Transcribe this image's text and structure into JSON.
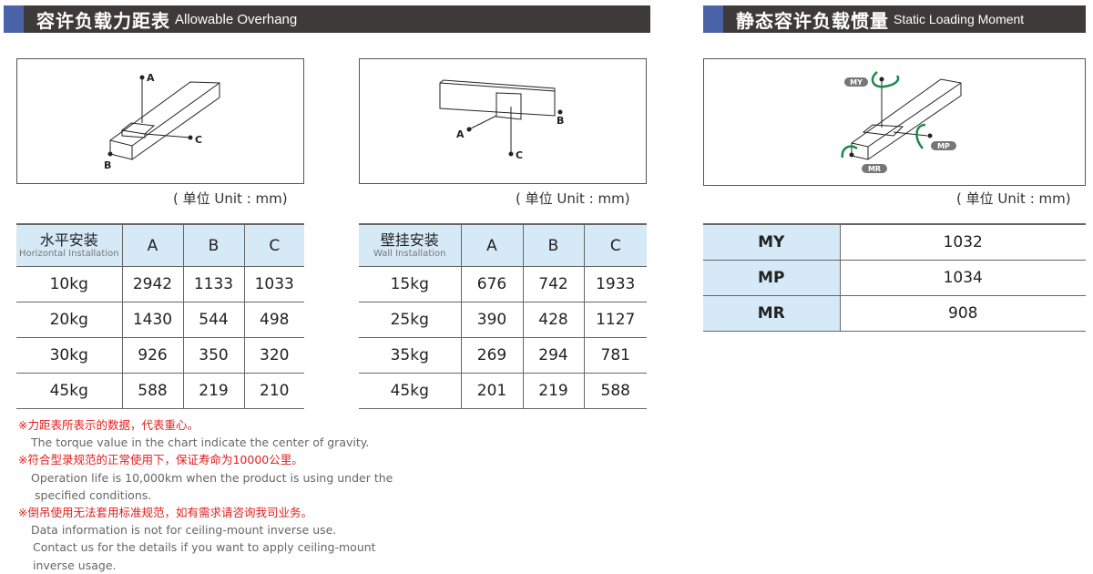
{
  "overhang": {
    "title_zh": "容许负载力距表",
    "title_en": "Allowable Overhang",
    "unit": "( 单位 Unit : mm)",
    "horizontal": {
      "header_zh": "水平安装",
      "header_en": "Horizontal Installation",
      "columns": [
        "A",
        "B",
        "C"
      ],
      "rows": [
        {
          "load": "10kg",
          "values": [
            "2942",
            "1133",
            "1033"
          ]
        },
        {
          "load": "20kg",
          "values": [
            "1430",
            "544",
            "498"
          ]
        },
        {
          "load": "30kg",
          "values": [
            "926",
            "350",
            "320"
          ]
        },
        {
          "load": "45kg",
          "values": [
            "588",
            "219",
            "210"
          ]
        }
      ]
    },
    "wall": {
      "header_zh": "壁挂安装",
      "header_en": "Wall Installation",
      "columns": [
        "A",
        "B",
        "C"
      ],
      "rows": [
        {
          "load": "15kg",
          "values": [
            "676",
            "742",
            "1933"
          ]
        },
        {
          "load": "25kg",
          "values": [
            "390",
            "428",
            "1127"
          ]
        },
        {
          "load": "35kg",
          "values": [
            "269",
            "294",
            "781"
          ]
        },
        {
          "load": "45kg",
          "values": [
            "201",
            "219",
            "588"
          ]
        }
      ]
    },
    "diagram_labels": [
      "A",
      "B",
      "C"
    ]
  },
  "moment": {
    "title_zh": "静态容许负载惯量",
    "title_en": "Static Loading Moment",
    "unit": "( 单位 Unit : mm)",
    "diagram_labels": [
      "MY",
      "MP",
      "MR"
    ],
    "arrow_color": "#1a8a4a",
    "rows": [
      {
        "label": "MY",
        "value": "1032"
      },
      {
        "label": "MP",
        "value": "1034"
      },
      {
        "label": "MR",
        "value": "908"
      }
    ]
  },
  "notes": [
    {
      "zh": "※力距表所表示的数据，代表重心。",
      "en": [
        "The torque value in the chart indicate the center of gravity."
      ]
    },
    {
      "zh": "※符合型录规范的正常使用下，保证寿命为10000公里。",
      "en": [
        "Operation life is 10,000km when the product is using under the",
        " specified conditions."
      ]
    },
    {
      "zh": "※倒吊使用无法套用标准规范，如有需求请咨询我司业务。",
      "en": [
        "Data information is not for ceiling-mount inverse use.",
        "Contact us for the details if you want to apply ceiling-mount",
        "inverse usage."
      ]
    }
  ],
  "colors": {
    "header_bg": "#3d3a39",
    "header_accent": "#4a63a8",
    "table_header": "#d6e9f7",
    "note_red": "#e0201e"
  }
}
